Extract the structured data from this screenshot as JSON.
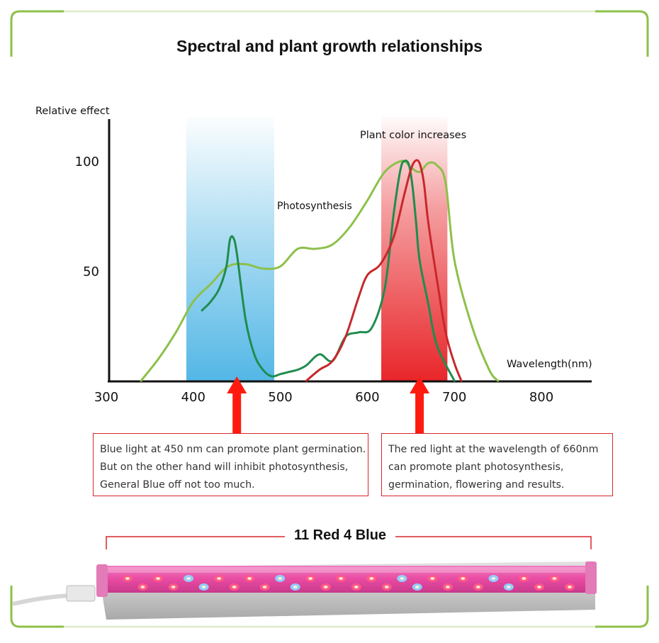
{
  "title": "Spectral and plant growth relationships",
  "chart_data": {
    "type": "line",
    "ylabel": "Relative effect",
    "xlabel": "Wavelength(nm)",
    "x_ticks": [
      "300",
      "400",
      "500",
      "600",
      "700",
      "800"
    ],
    "y_ticks": [
      "100",
      "50"
    ],
    "xlim": [
      300,
      860
    ],
    "ylim": [
      0,
      100
    ],
    "annotations": {
      "plant_color": "Plant color increases",
      "photosynthesis": "Photosynthesis"
    },
    "bands": [
      {
        "range": [
          392,
          493
        ],
        "color": "#4ab3e4"
      },
      {
        "range": [
          616,
          692
        ],
        "color": "#e8262a"
      }
    ],
    "series": [
      {
        "color": "#8dc04a",
        "x": [
          340,
          360,
          380,
          400,
          420,
          440,
          460,
          480,
          500,
          520,
          540,
          560,
          580,
          600,
          620,
          640,
          650,
          660,
          670,
          680,
          690,
          700,
          720,
          740,
          750
        ],
        "y": [
          0,
          10,
          22,
          36,
          44,
          52,
          53,
          51,
          52,
          60,
          60,
          62,
          70,
          82,
          95,
          100,
          97,
          95,
          99,
          98,
          90,
          55,
          25,
          5,
          0
        ]
      },
      {
        "color": "#1f8c4e",
        "x": [
          410,
          420,
          430,
          438,
          442,
          446,
          450,
          460,
          470,
          480,
          490,
          500,
          510,
          520,
          530,
          545,
          560,
          575,
          590,
          605,
          620,
          630,
          638,
          643,
          648,
          652,
          656,
          660,
          670,
          680,
          700
        ],
        "y": [
          32,
          36,
          42,
          52,
          64,
          65,
          58,
          28,
          12,
          5,
          2,
          3,
          4,
          5,
          7,
          12,
          9,
          20,
          22,
          24,
          42,
          75,
          96,
          100,
          98,
          88,
          72,
          55,
          35,
          16,
          0
        ]
      },
      {
        "color": "#c7282c",
        "x": [
          530,
          545,
          560,
          575,
          590,
          600,
          615,
          630,
          642,
          650,
          655,
          660,
          665,
          670,
          680,
          690,
          700,
          708
        ],
        "y": [
          0,
          5,
          9,
          20,
          38,
          48,
          53,
          65,
          84,
          96,
          100,
          99,
          90,
          72,
          46,
          22,
          8,
          0
        ]
      }
    ],
    "arrows": [
      450,
      660
    ]
  },
  "callouts": {
    "blue": [
      "Blue light at 450 nm can promote plant germination.",
      "But on the other hand will inhibit photosynthesis,",
      "General Blue off not too much."
    ],
    "red": [
      "The red light at the wavelength of 660nm",
      "can promote plant photosynthesis,",
      "germination, flowering and results."
    ]
  },
  "led": {
    "label": "11 Red 4 Blue",
    "beads": [
      "red",
      "red",
      "blue",
      "red",
      "red",
      "blue",
      "red",
      "red",
      "red",
      "blue",
      "red",
      "red",
      "blue",
      "red",
      "red"
    ],
    "red_color": "#ff5a8a",
    "blue_color": "#8fd3ff",
    "tube_color": "#e84aa2"
  },
  "frame_color": "#8dc04a"
}
